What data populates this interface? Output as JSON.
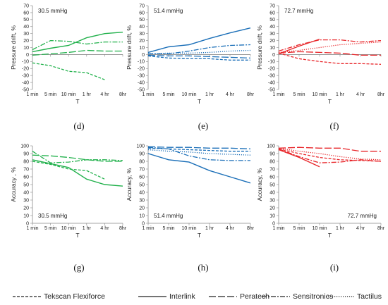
{
  "legend": [
    {
      "label": "Tekscan Flexiforce",
      "dash": "short"
    },
    {
      "label": "Interlink",
      "dash": "solid"
    },
    {
      "label": "Peratech",
      "dash": "long"
    },
    {
      "label": "Sensitronics",
      "dash": "dashdot"
    },
    {
      "label": "Tactilus",
      "dash": "dot"
    }
  ],
  "chart_data": [
    {
      "type": "line",
      "panel_label": "(d)",
      "annotation": "30.5 mmHg",
      "ylabel": "Pressure drift, %",
      "xlabel": "T",
      "categories": [
        "1 min",
        "5 min",
        "10 min",
        "1 hr",
        "4 hr",
        "8hr"
      ],
      "ylim": [
        -50,
        70
      ],
      "ytick_step": 10,
      "color": "#22b14c",
      "annot_pos": "top-left",
      "series": [
        {
          "name": "Tekscan Flexiforce",
          "values": [
            -12,
            -16,
            -24,
            -26,
            -36,
            null
          ]
        },
        {
          "name": "Interlink",
          "values": [
            4,
            9,
            13,
            24,
            30,
            32
          ]
        },
        {
          "name": "Peratech",
          "values": [
            -1,
            1,
            3,
            6,
            5,
            5
          ]
        },
        {
          "name": "Sensitronics",
          "values": [
            7,
            20,
            19,
            15,
            18,
            18
          ]
        }
      ]
    },
    {
      "type": "line",
      "panel_label": "(e)",
      "annotation": "51.4 mmHg",
      "ylabel": "Pressure drift, %",
      "xlabel": "T",
      "categories": [
        "1 min",
        "5 min",
        "10 min",
        "1 hr",
        "4 hr",
        "8hr"
      ],
      "ylim": [
        -50,
        70
      ],
      "ytick_step": 10,
      "color": "#1b6fb8",
      "annot_pos": "top-left",
      "series": [
        {
          "name": "Tekscan Flexiforce",
          "values": [
            -2,
            -5,
            -6,
            -6,
            -8,
            -8
          ]
        },
        {
          "name": "Interlink",
          "values": [
            3,
            11,
            14,
            23,
            31,
            38
          ]
        },
        {
          "name": "Peratech",
          "values": [
            -1,
            -2,
            -2,
            -3,
            -4,
            -5
          ]
        },
        {
          "name": "Sensitronics",
          "values": [
            1,
            1,
            5,
            10,
            13,
            14
          ]
        },
        {
          "name": "Tactilus",
          "values": [
            1,
            2,
            2,
            3,
            5,
            6
          ]
        }
      ]
    },
    {
      "type": "line",
      "panel_label": "(f)",
      "annotation": "72.7 mmHg",
      "ylabel": "Pressure drift, %",
      "xlabel": "T",
      "categories": [
        "1 min",
        "5 min",
        "10 min",
        "1 hr",
        "4 hr",
        "8hr"
      ],
      "ylim": [
        -50,
        70
      ],
      "ytick_step": 10,
      "color": "#e8262a",
      "annot_pos": "top-left",
      "series": [
        {
          "name": "Tekscan Flexiforce",
          "values": [
            2,
            -6,
            -10,
            -13,
            -13,
            -14
          ]
        },
        {
          "name": "Interlink",
          "values": [
            1,
            12,
            22,
            null,
            null,
            null
          ]
        },
        {
          "name": "Peratech",
          "values": [
            2,
            4,
            3,
            2,
            -1,
            -1
          ]
        },
        {
          "name": "Sensitronics",
          "values": [
            5,
            14,
            21,
            21,
            18,
            20
          ]
        },
        {
          "name": "Tactilus",
          "values": [
            3,
            6,
            10,
            14,
            16,
            18
          ]
        }
      ]
    },
    {
      "type": "line",
      "panel_label": "(g)",
      "annotation": "30.5 mmHg",
      "ylabel": "Accuracy , %",
      "xlabel": "T",
      "categories": [
        "1 min",
        "5 min",
        "10 min",
        "1 hr",
        "4 hr",
        "8hr"
      ],
      "ylim": [
        0,
        100
      ],
      "ytick_step": 10,
      "color": "#22b14c",
      "annot_pos": "bottom-left",
      "series": [
        {
          "name": "Tekscan Flexiforce",
          "values": [
            80,
            76,
            70,
            68,
            57,
            null
          ]
        },
        {
          "name": "Interlink",
          "values": [
            82,
            77,
            72,
            57,
            50,
            48
          ]
        },
        {
          "name": "Peratech",
          "values": [
            88,
            87,
            85,
            82,
            80,
            80
          ]
        },
        {
          "name": "Sensitronics",
          "values": [
            93,
            78,
            79,
            82,
            82,
            81
          ]
        }
      ]
    },
    {
      "type": "line",
      "panel_label": "(h)",
      "annotation": "51.4 mmHg",
      "ylabel": "Accuracy, %",
      "xlabel": "T",
      "categories": [
        "1 min",
        "5 min",
        "10 min",
        "1 hr",
        "4 hr",
        "8hr"
      ],
      "ylim": [
        0,
        100
      ],
      "ytick_step": 10,
      "color": "#1b6fb8",
      "annot_pos": "bottom-left",
      "series": [
        {
          "name": "Tekscan Flexiforce",
          "values": [
            97,
            96,
            95,
            94,
            93,
            93
          ]
        },
        {
          "name": "Interlink",
          "values": [
            90,
            82,
            79,
            68,
            60,
            52
          ]
        },
        {
          "name": "Peratech",
          "values": [
            99,
            98,
            98,
            97,
            97,
            96
          ]
        },
        {
          "name": "Sensitronics",
          "values": [
            98,
            96,
            87,
            82,
            81,
            81
          ]
        },
        {
          "name": "Tactilus",
          "values": [
            95,
            93,
            92,
            90,
            89,
            88
          ]
        }
      ]
    },
    {
      "type": "line",
      "panel_label": "(i)",
      "annotation": "72.7 mmHg",
      "ylabel": "Accuracy, %",
      "xlabel": "T",
      "categories": [
        "1 min",
        "5 min",
        "10 min",
        "1 hr",
        "4 hr",
        "8hr"
      ],
      "ylim": [
        0,
        100
      ],
      "ytick_step": 10,
      "color": "#e8262a",
      "annot_pos": "bottom-right",
      "series": [
        {
          "name": "Tekscan Flexiforce",
          "values": [
            96,
            90,
            85,
            82,
            81,
            80
          ]
        },
        {
          "name": "Interlink",
          "values": [
            95,
            85,
            73,
            null,
            null,
            null
          ]
        },
        {
          "name": "Peratech",
          "values": [
            97,
            98,
            97,
            97,
            93,
            93
          ]
        },
        {
          "name": "Sensitronics",
          "values": [
            96,
            86,
            78,
            79,
            82,
            80
          ]
        },
        {
          "name": "Tactilus",
          "values": [
            97,
            93,
            90,
            86,
            83,
            82
          ]
        }
      ]
    }
  ]
}
